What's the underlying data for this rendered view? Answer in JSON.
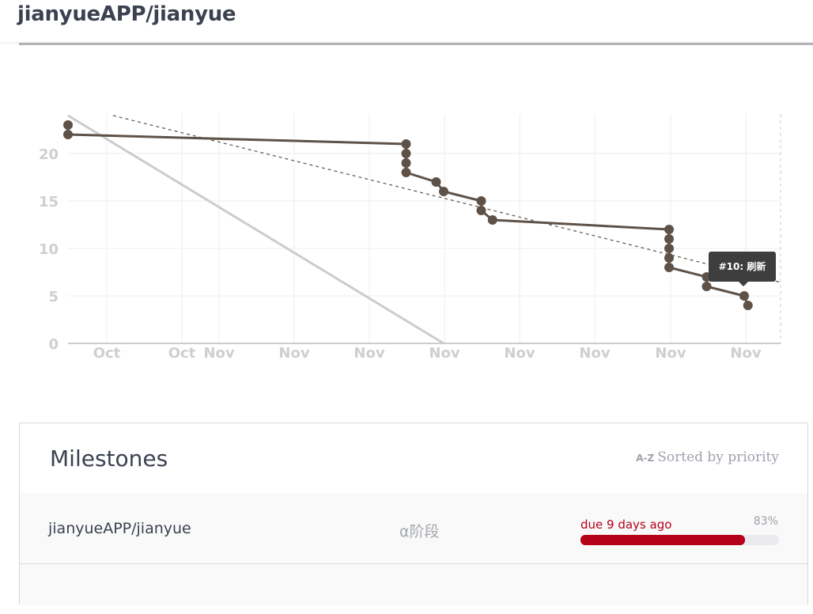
{
  "header": {
    "title": "jianyueAPP/jianyue"
  },
  "chart_data": {
    "type": "line",
    "xlabel": "",
    "ylabel": "",
    "x_tick_labels": [
      "Oct",
      "Oct",
      "Nov",
      "Nov",
      "Nov",
      "Nov",
      "Nov",
      "Nov",
      "Nov",
      "Nov"
    ],
    "y_tick_labels": [
      "0",
      "5",
      "10",
      "15",
      "20"
    ],
    "ylim": [
      0,
      24
    ],
    "grid": true,
    "legend": "none",
    "colors": {
      "actual": "#5e5248",
      "ideal": "#cccccc",
      "trend": "#5e5248",
      "grid": "#eeeeee"
    },
    "series": [
      {
        "role": "actual",
        "style": "solid-with-points",
        "points": [
          {
            "x": 0,
            "y": 23
          },
          {
            "x": 0,
            "y": 22
          },
          {
            "x": 4.5,
            "y": 21
          },
          {
            "x": 4.5,
            "y": 20
          },
          {
            "x": 4.5,
            "y": 19
          },
          {
            "x": 4.5,
            "y": 18
          },
          {
            "x": 4.9,
            "y": 17
          },
          {
            "x": 5.0,
            "y": 16
          },
          {
            "x": 5.5,
            "y": 15
          },
          {
            "x": 5.5,
            "y": 14
          },
          {
            "x": 5.65,
            "y": 13
          },
          {
            "x": 8.0,
            "y": 12
          },
          {
            "x": 8.0,
            "y": 11
          },
          {
            "x": 8.0,
            "y": 10
          },
          {
            "x": 8.0,
            "y": 9
          },
          {
            "x": 8.0,
            "y": 8
          },
          {
            "x": 8.5,
            "y": 7
          },
          {
            "x": 8.5,
            "y": 6
          },
          {
            "x": 9.0,
            "y": 5
          },
          {
            "x": 9.05,
            "y": 4
          }
        ]
      },
      {
        "role": "ideal",
        "style": "solid",
        "points": [
          {
            "x": 0,
            "y": 24
          },
          {
            "x": 5.0,
            "y": 0
          }
        ]
      },
      {
        "role": "trend",
        "style": "dashed",
        "points": [
          {
            "x": 0.6,
            "y": 24
          },
          {
            "x": 9.5,
            "y": 6.4
          }
        ]
      }
    ],
    "tooltip": {
      "text": "#10: 刷新"
    }
  },
  "milestones": {
    "title": "Milestones",
    "sort_icon": "A-Z",
    "sort_label": "Sorted by priority",
    "rows": [
      {
        "name": "jianyueAPP/jianyue",
        "stage": "α阶段",
        "due": "due 9 days ago",
        "percent_label": "83%",
        "percent": 0.83,
        "accent": "#b5001a"
      }
    ]
  }
}
